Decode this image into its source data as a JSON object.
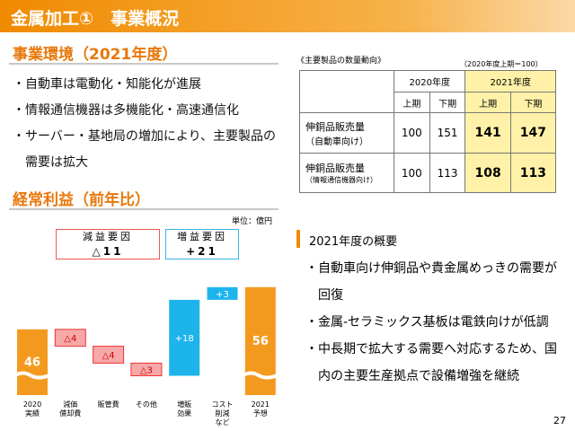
{
  "header": {
    "title": "金属加工①　事業概況"
  },
  "environment": {
    "heading": "事業環境（2021年度）",
    "bullets": [
      "・自動車は電動化・知能化が進展",
      "・情報通信機器は多機能化・高速通信化",
      "・サーバー・基地局の増加により、主要製品の需要は拡大"
    ]
  },
  "table": {
    "title": "《主要製品の数量動向》",
    "note": "（2020年度上期＝100）",
    "years": [
      "2020年度",
      "2021年度"
    ],
    "halves": [
      "上期",
      "下期",
      "上期",
      "下期"
    ],
    "rows": [
      {
        "label": "伸銅品販売量",
        "sublabel": "（自動車向け）",
        "values": [
          100,
          151,
          141,
          147
        ]
      },
      {
        "label": "伸銅品販売量",
        "sublabel": "（情報通信機器向け）",
        "values": [
          100,
          113,
          108,
          113
        ]
      }
    ]
  },
  "profit": {
    "heading": "経常利益（前年比）",
    "factors": [
      {
        "label": "減益要因",
        "value": "△11"
      },
      {
        "label": "増益要因",
        "value": "+21"
      }
    ]
  },
  "chart_data": {
    "type": "waterfall",
    "unit": "単位：億円",
    "categories": [
      "2020\n実績",
      "減価\n償却費",
      "販管費",
      "その他",
      "増販\n効果",
      "コスト\n削減\nなど",
      "2021\n予想"
    ],
    "values": [
      46,
      -4,
      -4,
      -3,
      18,
      3,
      56
    ],
    "value_labels": [
      "46",
      "△4",
      "△4",
      "△3",
      "+18",
      "+3",
      "56"
    ],
    "colors": {
      "total": "#f39a1e",
      "decrease": "#f7a8a8",
      "increase": "#1db4ec"
    }
  },
  "summary": {
    "heading": "2021年度の概要",
    "bullets": [
      "・自動車向け伸銅品や貴金属めっきの需要が回復",
      "・金属-セラミックス基板は電鉄向けが低調",
      "・中長期で拡大する需要へ対応するため、国内の主要生産拠点で設備増強を継続"
    ]
  },
  "page_number": "27"
}
